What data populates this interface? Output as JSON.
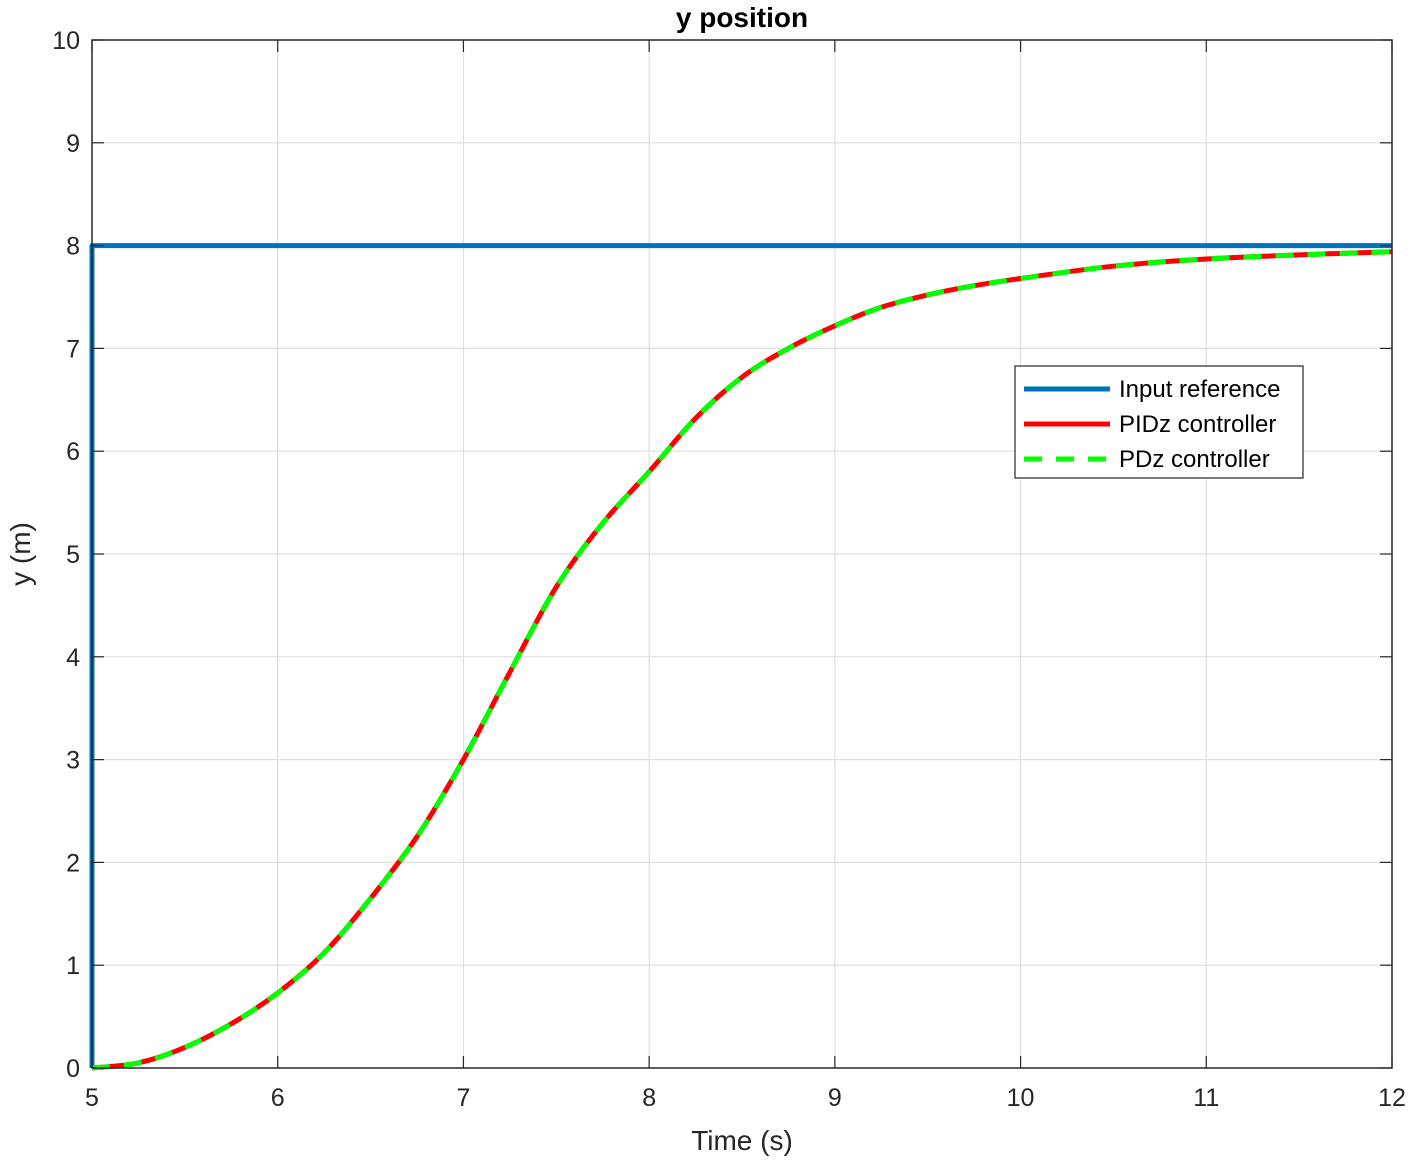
{
  "chart_data": {
    "type": "line",
    "title": "y position",
    "xlabel": "Time (s)",
    "ylabel": "y (m)",
    "xlim": [
      5,
      12
    ],
    "ylim": [
      0,
      10
    ],
    "xticks": [
      "5",
      "6",
      "7",
      "8",
      "9",
      "10",
      "11",
      "12"
    ],
    "yticks": [
      "0",
      "1",
      "2",
      "3",
      "4",
      "5",
      "6",
      "7",
      "8",
      "9",
      "10"
    ],
    "grid": true,
    "legend_position": "upper-right (inside)",
    "series": [
      {
        "name": "Input reference",
        "color": "#0072BD",
        "style": "solid",
        "x": [
          5,
          5,
          12
        ],
        "y": [
          0,
          8,
          8
        ]
      },
      {
        "name": "PIDz controller",
        "color": "#FF0000",
        "style": "solid",
        "x": [
          5,
          5.25,
          5.5,
          5.75,
          6,
          6.25,
          6.5,
          6.75,
          7,
          7.25,
          7.5,
          7.75,
          8,
          8.25,
          8.5,
          8.75,
          9,
          9.25,
          9.5,
          9.75,
          10,
          10.5,
          11,
          11.5,
          12
        ],
        "y": [
          0,
          0.05,
          0.2,
          0.43,
          0.73,
          1.12,
          1.65,
          2.25,
          3.0,
          3.85,
          4.68,
          5.3,
          5.8,
          6.32,
          6.72,
          7.0,
          7.22,
          7.4,
          7.52,
          7.61,
          7.68,
          7.8,
          7.87,
          7.91,
          7.94
        ]
      },
      {
        "name": "PDz controller",
        "color": "#00FF00",
        "style": "dashed",
        "x": [
          5,
          5.25,
          5.5,
          5.75,
          6,
          6.25,
          6.5,
          6.75,
          7,
          7.25,
          7.5,
          7.75,
          8,
          8.25,
          8.5,
          8.75,
          9,
          9.25,
          9.5,
          9.75,
          10,
          10.5,
          11,
          11.5,
          12
        ],
        "y": [
          0,
          0.05,
          0.2,
          0.43,
          0.73,
          1.12,
          1.65,
          2.25,
          3.0,
          3.85,
          4.68,
          5.3,
          5.8,
          6.32,
          6.72,
          7.0,
          7.22,
          7.4,
          7.52,
          7.61,
          7.68,
          7.8,
          7.87,
          7.91,
          7.94
        ]
      }
    ]
  }
}
